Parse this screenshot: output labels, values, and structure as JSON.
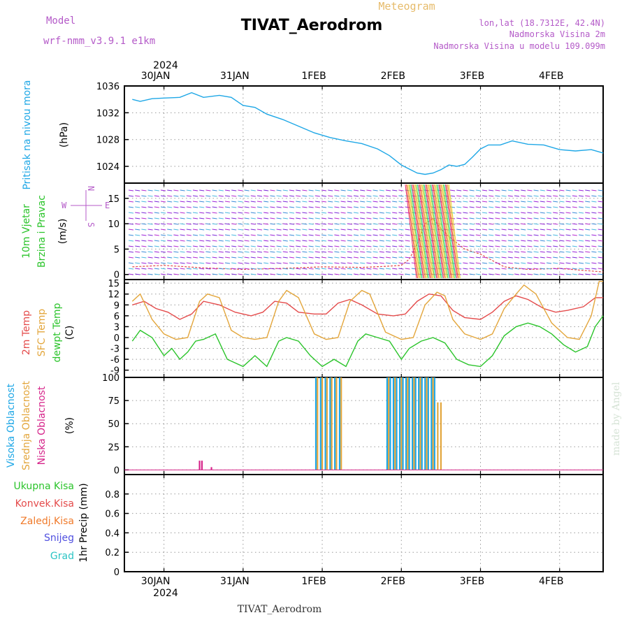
{
  "header": {
    "model_label": "Model",
    "model_name": "wrf-nmm_v3.9.1 e1km",
    "title": "TIVAT_Aerodrom",
    "meteogram": "Meteogram",
    "lonlat": "lon,lat (18.7312E, 42.4N)",
    "elevation": "Nadmorska Visina 2m",
    "model_elevation": "Nadmorska Visina u modelu 109.099m"
  },
  "footer": {
    "station": "TIVAT_Aerodrom",
    "made_by": "made by Angel"
  },
  "dates": {
    "year": "2024",
    "labels": [
      "30JAN",
      "31JAN",
      "1FEB",
      "2FEB",
      "3FEB",
      "4FEB"
    ]
  },
  "wind_compass": {
    "n": "N",
    "w": "W",
    "e": "E",
    "s": "S"
  },
  "colors": {
    "pressure": "#1ea7e6",
    "temp2m": "#e44b4b",
    "sfc_temp": "#e3a63c",
    "dewpoint": "#2bc42b",
    "high_cloud": "#1ea7e6",
    "mid_cloud": "#e3a63c",
    "low_cloud": "#d6248a",
    "purple": "#b45ac8"
  },
  "panels": {
    "pressure": {
      "labels": [
        {
          "text": "Pritisak na nivou mora",
          "color": "#1ea7e6"
        }
      ],
      "unit": "(hPa)",
      "ticks": [
        "1024",
        "1028",
        "1032",
        "1036"
      ]
    },
    "wind": {
      "labels": [
        {
          "text": "10m Vjetar",
          "color": "#2bc42b"
        },
        {
          "text": "Brzina i Pravac",
          "color": "#2bc42b"
        }
      ],
      "unit": "(m/s)",
      "ticks": [
        "0",
        "5",
        "10",
        "15"
      ]
    },
    "temperature": {
      "labels": [
        {
          "text": "2m Temp",
          "color": "#e44b4b"
        },
        {
          "text": "SFC Temp",
          "color": "#e3a63c"
        },
        {
          "text": "dewpt Temp",
          "color": "#2bc42b"
        }
      ],
      "unit": "(C)",
      "ticks": [
        "-9",
        "-6",
        "-3",
        "0",
        "3",
        "6",
        "9",
        "12",
        "15"
      ]
    },
    "cloud": {
      "labels": [
        {
          "text": "Visoka Oblacnost",
          "color": "#1ea7e6"
        },
        {
          "text": "Srednja Oblacnost",
          "color": "#e3a63c"
        },
        {
          "text": "Niska Oblacnost",
          "color": "#d6248a"
        }
      ],
      "unit": "(%)",
      "ticks": [
        "0",
        "25",
        "50",
        "75",
        "100"
      ]
    },
    "precip": {
      "labels": [
        {
          "text": "Ukupna Kisa",
          "color": "#2bc42b"
        },
        {
          "text": "Konvek.Kisa",
          "color": "#e44b4b"
        },
        {
          "text": "Zaledj.Kisa",
          "color": "#f07a2a"
        },
        {
          "text": "Snijeg",
          "color": "#5050e0"
        },
        {
          "text": "Grad",
          "color": "#2bc4c4"
        }
      ],
      "unit": "1hr Precip (mm)",
      "ticks": [
        "0",
        "0.2",
        "0.4",
        "0.6",
        "0.8"
      ]
    }
  },
  "chart_data": [
    {
      "type": "line",
      "name": "pressure",
      "x_unit": "days since 29JAN 00Z",
      "ylim": [
        1021.5,
        1036
      ],
      "series": [
        {
          "name": "Pritisak na nivou mora",
          "color": "#1ea7e6",
          "x": [
            0.6,
            0.7,
            0.85,
            1.0,
            1.2,
            1.35,
            1.5,
            1.7,
            1.85,
            2.0,
            2.15,
            2.3,
            2.5,
            2.7,
            2.9,
            3.1,
            3.3,
            3.5,
            3.7,
            3.85,
            4.0,
            4.1,
            4.2,
            4.3,
            4.4,
            4.5,
            4.6,
            4.7,
            4.8,
            4.9,
            5.0,
            5.1,
            5.25,
            5.4,
            5.6,
            5.8,
            6.0,
            6.2,
            6.4,
            6.55
          ],
          "y": [
            1034.0,
            1033.7,
            1034.1,
            1034.2,
            1034.3,
            1035.0,
            1034.3,
            1034.6,
            1034.3,
            1033.1,
            1032.8,
            1031.8,
            1031.0,
            1030.0,
            1029.0,
            1028.3,
            1027.8,
            1027.4,
            1026.6,
            1025.6,
            1024.2,
            1023.6,
            1023.0,
            1022.8,
            1023.0,
            1023.5,
            1024.2,
            1024.0,
            1024.3,
            1025.4,
            1026.6,
            1027.2,
            1027.2,
            1027.8,
            1027.3,
            1027.2,
            1026.5,
            1026.3,
            1026.5,
            1026.0
          ]
        }
      ]
    },
    {
      "type": "line",
      "name": "wind",
      "x_unit": "days since 29JAN 00Z",
      "ylim": [
        -1,
        18
      ],
      "series": [
        {
          "name": "wind speed",
          "color": "#e44b4b",
          "x": [
            0.6,
            1.0,
            1.5,
            2.0,
            2.5,
            3.0,
            3.5,
            3.8,
            4.0,
            4.1,
            4.2,
            4.3,
            4.4,
            4.5,
            4.6,
            4.8,
            5.0,
            5.3,
            5.6,
            6.0,
            6.3,
            6.55
          ],
          "y": [
            1.5,
            1.8,
            1.3,
            1.0,
            1.2,
            1.5,
            1.4,
            1.6,
            1.8,
            3.0,
            6.0,
            10.0,
            11.0,
            9.0,
            7.5,
            5.0,
            4.0,
            1.5,
            1.0,
            1.2,
            0.8,
            0.5
          ]
        }
      ]
    },
    {
      "type": "line",
      "name": "temperature",
      "x_unit": "days since 29JAN 00Z",
      "ylim": [
        -11,
        16
      ],
      "series": [
        {
          "name": "2m Temp",
          "color": "#e44b4b",
          "x": [
            0.6,
            0.75,
            0.9,
            1.05,
            1.2,
            1.35,
            1.5,
            1.7,
            1.9,
            2.1,
            2.25,
            2.4,
            2.55,
            2.7,
            2.9,
            3.05,
            3.2,
            3.35,
            3.5,
            3.7,
            3.9,
            4.05,
            4.2,
            4.35,
            4.5,
            4.65,
            4.8,
            5.0,
            5.15,
            5.3,
            5.45,
            5.6,
            5.8,
            5.95,
            6.1,
            6.3,
            6.45,
            6.55
          ],
          "y": [
            9.0,
            10.0,
            8.0,
            7.0,
            5.0,
            6.5,
            10.0,
            9.0,
            7.0,
            6.0,
            7.0,
            10.0,
            9.5,
            7.0,
            6.5,
            6.5,
            9.5,
            10.5,
            9.0,
            6.5,
            6.0,
            6.5,
            10.0,
            12.0,
            11.5,
            7.5,
            5.5,
            5.0,
            7.0,
            10.0,
            11.5,
            10.5,
            8.0,
            7.0,
            7.5,
            8.5,
            11.0,
            11.0
          ]
        },
        {
          "name": "SFC Temp",
          "color": "#e3a63c",
          "x": [
            0.6,
            0.7,
            0.85,
            1.0,
            1.15,
            1.3,
            1.45,
            1.55,
            1.7,
            1.85,
            2.0,
            2.15,
            2.3,
            2.45,
            2.55,
            2.7,
            2.9,
            3.05,
            3.2,
            3.35,
            3.5,
            3.6,
            3.8,
            4.0,
            4.15,
            4.3,
            4.45,
            4.55,
            4.65,
            4.8,
            5.0,
            5.15,
            5.3,
            5.45,
            5.55,
            5.7,
            5.9,
            6.1,
            6.25,
            6.4,
            6.5,
            6.55
          ],
          "y": [
            10.0,
            12.0,
            5.0,
            1.0,
            -0.5,
            0.0,
            10.0,
            12.0,
            11.0,
            2.0,
            0.0,
            -0.5,
            0.0,
            10.0,
            13.0,
            11.0,
            1.0,
            -0.5,
            0.0,
            10.0,
            13.0,
            12.0,
            1.5,
            -0.5,
            0.0,
            9.0,
            12.5,
            11.5,
            5.0,
            1.0,
            -0.5,
            1.0,
            8.0,
            12.0,
            14.5,
            12.0,
            4.0,
            0.0,
            -0.5,
            6.0,
            15.5,
            15.5
          ]
        },
        {
          "name": "dewpt Temp",
          "color": "#2bc42b",
          "x": [
            0.6,
            0.7,
            0.85,
            1.0,
            1.1,
            1.2,
            1.3,
            1.4,
            1.5,
            1.65,
            1.8,
            2.0,
            2.15,
            2.3,
            2.45,
            2.55,
            2.7,
            2.85,
            3.0,
            3.15,
            3.3,
            3.45,
            3.55,
            3.7,
            3.85,
            4.0,
            4.1,
            4.25,
            4.4,
            4.55,
            4.7,
            4.85,
            5.0,
            5.15,
            5.3,
            5.45,
            5.6,
            5.75,
            5.9,
            6.05,
            6.2,
            6.35,
            6.45,
            6.55
          ],
          "y": [
            -1.0,
            2.0,
            0.0,
            -5.0,
            -3.0,
            -6.0,
            -4.0,
            -1.0,
            -0.5,
            1.0,
            -6.0,
            -8.0,
            -5.0,
            -8.0,
            -1.0,
            0.0,
            -1.0,
            -5.0,
            -8.0,
            -6.0,
            -8.0,
            -1.0,
            1.0,
            0.0,
            -1.0,
            -6.0,
            -3.0,
            -1.0,
            0.0,
            -1.5,
            -6.0,
            -7.5,
            -8.0,
            -5.0,
            0.5,
            3.0,
            4.0,
            3.0,
            1.0,
            -2.0,
            -4.0,
            -2.5,
            3.0,
            6.0
          ]
        }
      ]
    },
    {
      "type": "bar",
      "name": "cloud",
      "x_unit": "days since 29JAN 00Z",
      "ylim": [
        -5,
        100
      ],
      "series": [
        {
          "name": "Visoka Oblacnost",
          "color": "#1ea7e6",
          "x": [
            2.92,
            2.98,
            3.04,
            3.1,
            3.16,
            3.22,
            3.82,
            3.86,
            3.9,
            3.94,
            3.98,
            4.02,
            4.06,
            4.1,
            4.14,
            4.18,
            4.22,
            4.26,
            4.3,
            4.34,
            4.38,
            4.42
          ],
          "values": [
            100,
            100,
            100,
            100,
            100,
            100,
            100,
            100,
            100,
            100,
            100,
            100,
            100,
            100,
            100,
            100,
            100,
            100,
            100,
            100,
            100,
            100
          ]
        },
        {
          "name": "Srednja Oblacnost",
          "color": "#e3a63c",
          "x": [
            2.94,
            3.0,
            3.06,
            3.12,
            3.18,
            3.24,
            3.84,
            3.92,
            4.0,
            4.08,
            4.16,
            4.24,
            4.32,
            4.4,
            4.46,
            4.5
          ],
          "values": [
            100,
            100,
            100,
            100,
            100,
            100,
            100,
            100,
            100,
            100,
            100,
            100,
            100,
            100,
            73,
            73
          ]
        },
        {
          "name": "Niska Oblacnost",
          "color": "#d6248a",
          "x": [
            1.45,
            1.48,
            1.6
          ],
          "values": [
            10,
            10,
            3
          ]
        }
      ]
    },
    {
      "type": "bar",
      "name": "precip",
      "x_unit": "days since 29JAN 00Z",
      "ylim": [
        0,
        1.0
      ],
      "series": [
        {
          "name": "Ukupna Kisa",
          "color": "#2bc42b",
          "x": [],
          "values": []
        }
      ]
    }
  ]
}
